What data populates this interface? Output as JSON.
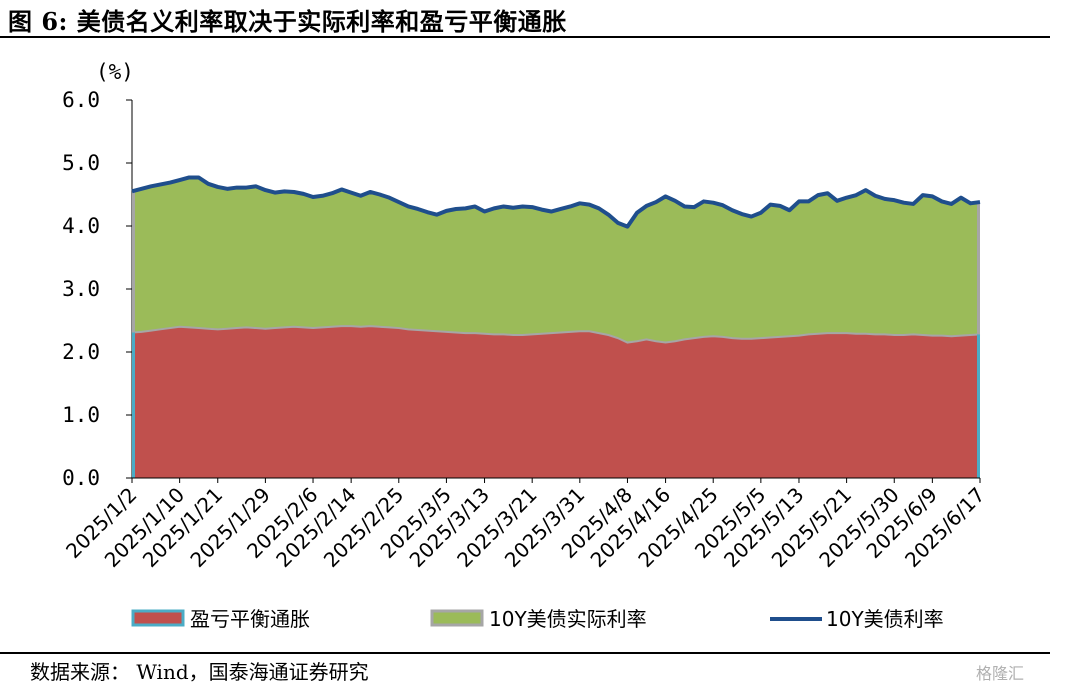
{
  "figure": {
    "title": "图 6:  美债名义利率取决于实际利率和盈亏平衡通胀",
    "source": "数据来源： Wind，国泰海通证券研究",
    "watermark": "格隆汇"
  },
  "chart_data": {
    "type": "area",
    "stacked": true,
    "unit": "(%)",
    "ylim": [
      0,
      6
    ],
    "yticks": [
      "0.0",
      "1.0",
      "2.0",
      "3.0",
      "4.0",
      "5.0",
      "6.0"
    ],
    "grid": false,
    "legend_position": "bottom",
    "x_tick_labels": [
      "2025/1/2",
      "2025/1/10",
      "2025/1/21",
      "2025/1/29",
      "2025/2/6",
      "2025/2/14",
      "2025/2/25",
      "2025/3/5",
      "2025/3/13",
      "2025/3/21",
      "2025/3/31",
      "2025/4/8",
      "2025/4/16",
      "2025/4/25",
      "2025/5/5",
      "2025/5/13",
      "2025/5/21",
      "2025/5/30",
      "2025/6/9",
      "2025/6/17"
    ],
    "series": [
      {
        "name": "盈亏平衡通胀",
        "kind": "area",
        "color": "#c0504d",
        "edge_color": "#4bacc6",
        "values": [
          2.31,
          2.32,
          2.34,
          2.36,
          2.38,
          2.4,
          2.39,
          2.38,
          2.37,
          2.36,
          2.37,
          2.38,
          2.39,
          2.38,
          2.37,
          2.38,
          2.39,
          2.4,
          2.39,
          2.38,
          2.39,
          2.4,
          2.41,
          2.41,
          2.4,
          2.41,
          2.4,
          2.39,
          2.38,
          2.36,
          2.35,
          2.34,
          2.33,
          2.32,
          2.31,
          2.3,
          2.3,
          2.29,
          2.28,
          2.28,
          2.27,
          2.27,
          2.28,
          2.29,
          2.3,
          2.31,
          2.32,
          2.33,
          2.33,
          2.3,
          2.27,
          2.22,
          2.15,
          2.17,
          2.2,
          2.17,
          2.15,
          2.17,
          2.2,
          2.22,
          2.24,
          2.25,
          2.24,
          2.22,
          2.21,
          2.21,
          2.22,
          2.23,
          2.24,
          2.25,
          2.26,
          2.28,
          2.29,
          2.3,
          2.3,
          2.3,
          2.29,
          2.29,
          2.28,
          2.28,
          2.27,
          2.27,
          2.28,
          2.27,
          2.26,
          2.26,
          2.25,
          2.26,
          2.27,
          2.28
        ]
      },
      {
        "name": "10Y美债实际利率",
        "kind": "area",
        "color": "#9bbb59",
        "edge_color": "#a6a6a6",
        "values": [
          2.24,
          2.27,
          2.29,
          2.3,
          2.31,
          2.33,
          2.38,
          2.39,
          2.3,
          2.26,
          2.22,
          2.23,
          2.22,
          2.25,
          2.2,
          2.15,
          2.16,
          2.14,
          2.12,
          2.08,
          2.09,
          2.12,
          2.17,
          2.12,
          2.08,
          2.13,
          2.1,
          2.06,
          2.0,
          1.95,
          1.92,
          1.88,
          1.85,
          1.92,
          1.96,
          1.98,
          2.01,
          1.94,
          2.0,
          2.03,
          2.02,
          2.04,
          2.02,
          1.97,
          1.93,
          1.96,
          1.99,
          2.03,
          2.01,
          1.98,
          1.91,
          1.83,
          1.84,
          2.04,
          2.12,
          2.21,
          2.32,
          2.23,
          2.11,
          2.08,
          2.15,
          2.12,
          2.09,
          2.03,
          1.98,
          1.94,
          1.99,
          2.11,
          2.08,
          2.0,
          2.13,
          2.11,
          2.2,
          2.22,
          2.1,
          2.15,
          2.2,
          2.28,
          2.2,
          2.15,
          2.14,
          2.1,
          2.07,
          2.22,
          2.21,
          2.13,
          2.1,
          2.19,
          2.09,
          2.1
        ]
      },
      {
        "name": "10Y美债利率",
        "kind": "line",
        "color": "#1f4e8c",
        "values": [
          4.55,
          4.59,
          4.63,
          4.66,
          4.69,
          4.73,
          4.77,
          4.77,
          4.67,
          4.62,
          4.59,
          4.61,
          4.61,
          4.63,
          4.57,
          4.53,
          4.55,
          4.54,
          4.51,
          4.46,
          4.48,
          4.52,
          4.58,
          4.53,
          4.48,
          4.54,
          4.5,
          4.45,
          4.38,
          4.31,
          4.27,
          4.22,
          4.18,
          4.24,
          4.27,
          4.28,
          4.31,
          4.23,
          4.28,
          4.31,
          4.29,
          4.31,
          4.3,
          4.26,
          4.23,
          4.27,
          4.31,
          4.36,
          4.34,
          4.28,
          4.18,
          4.05,
          3.99,
          4.21,
          4.32,
          4.38,
          4.47,
          4.4,
          4.31,
          4.3,
          4.39,
          4.37,
          4.33,
          4.25,
          4.19,
          4.15,
          4.21,
          4.34,
          4.32,
          4.25,
          4.39,
          4.39,
          4.49,
          4.52,
          4.4,
          4.45,
          4.49,
          4.57,
          4.48,
          4.43,
          4.41,
          4.37,
          4.35,
          4.49,
          4.47,
          4.39,
          4.35,
          4.45,
          4.36,
          4.38
        ]
      }
    ]
  }
}
